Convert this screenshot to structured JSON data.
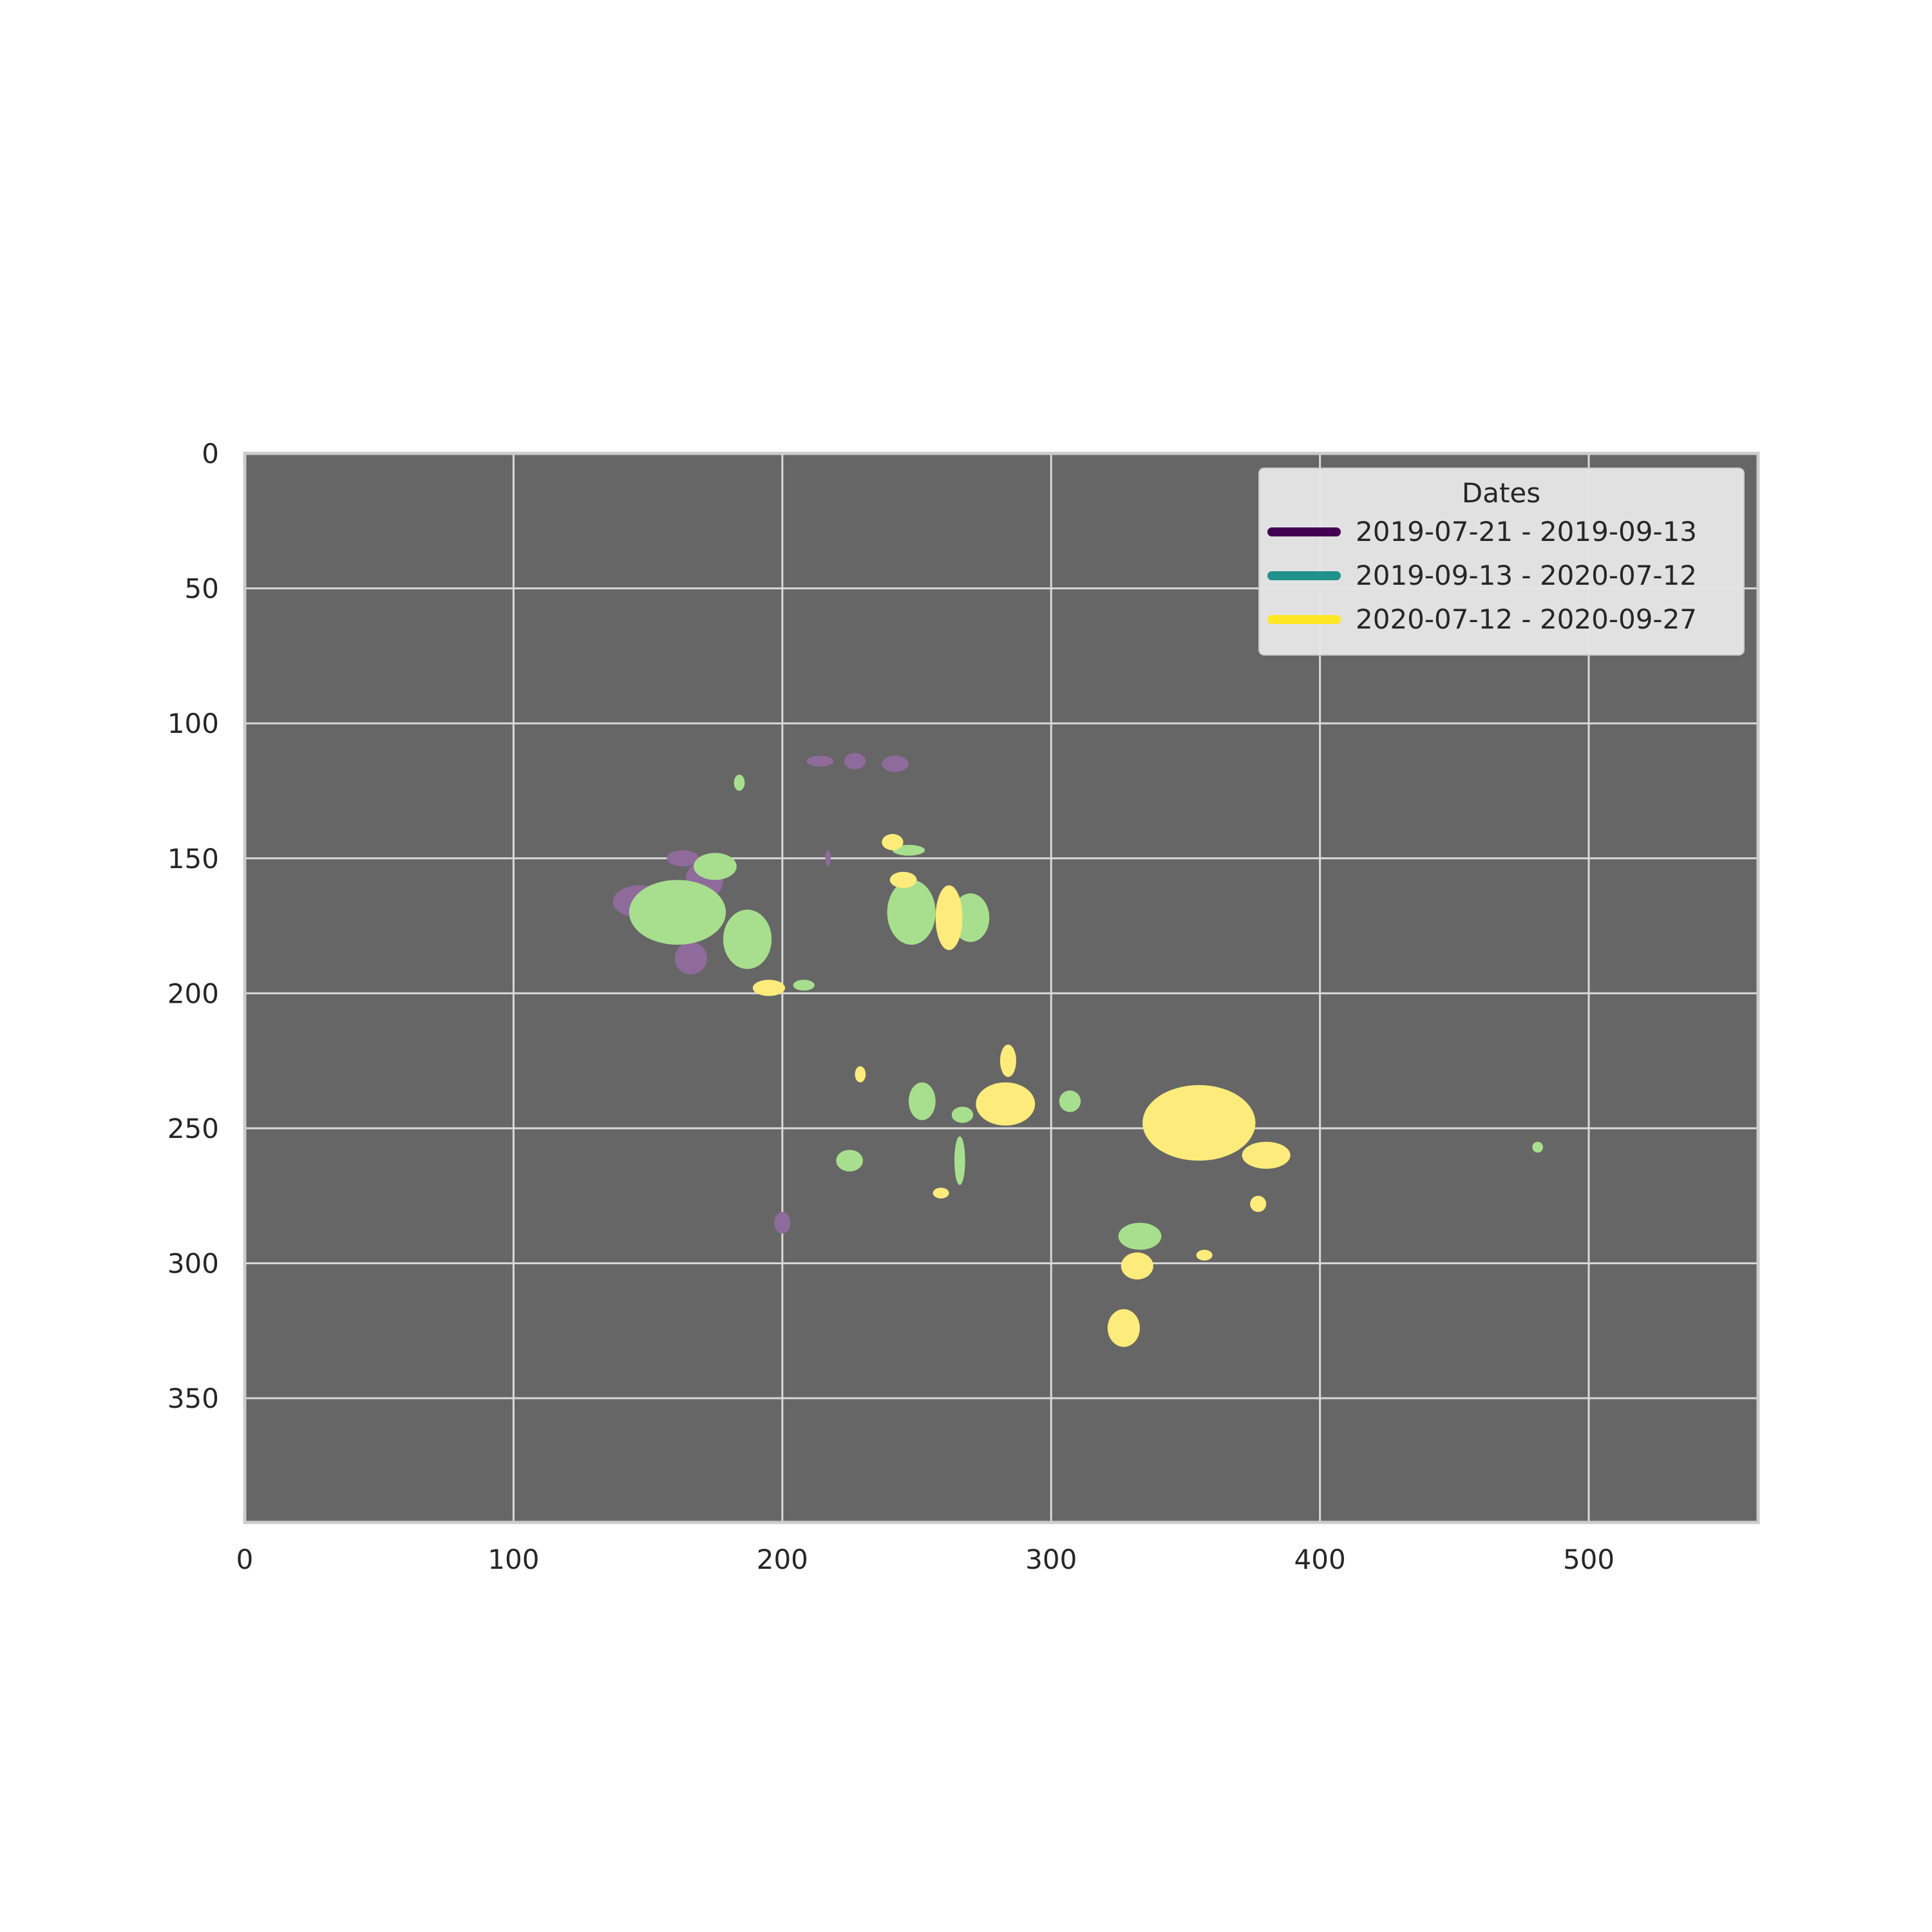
{
  "chart_data": {
    "type": "heatmap",
    "title": "",
    "xlabel": "",
    "ylabel": "",
    "xlim": [
      0,
      563
    ],
    "ylim": [
      396,
      0
    ],
    "y_axis_inverted": true,
    "grid": true,
    "background_color": "#666666",
    "grid_color": "#d9d9d9",
    "x_ticks": [
      0,
      100,
      200,
      300,
      400,
      500
    ],
    "y_ticks": [
      0,
      50,
      100,
      150,
      200,
      250,
      300,
      350
    ],
    "legend": {
      "title": "Dates",
      "placement": "top-right",
      "entries": [
        {
          "label": "2019-07-21 - 2019-09-13",
          "color": "#440154"
        },
        {
          "label": "2019-09-13 - 2020-07-12",
          "color": "#21918c"
        },
        {
          "label": "2020-07-12 - 2020-09-27",
          "color": "#fde725"
        }
      ]
    },
    "series": [
      {
        "color": "#8f6b9c",
        "regions": [
          {
            "x": 147,
            "y": 166,
            "rx": 10,
            "ry": 6
          },
          {
            "x": 163,
            "y": 150,
            "rx": 6,
            "ry": 3
          },
          {
            "x": 171,
            "y": 158,
            "rx": 7,
            "ry": 7
          },
          {
            "x": 166,
            "y": 187,
            "rx": 6,
            "ry": 6
          },
          {
            "x": 214,
            "y": 114,
            "rx": 5,
            "ry": 2
          },
          {
            "x": 227,
            "y": 114,
            "rx": 4,
            "ry": 3
          },
          {
            "x": 242,
            "y": 115,
            "rx": 5,
            "ry": 3
          },
          {
            "x": 217,
            "y": 150,
            "rx": 1,
            "ry": 3
          },
          {
            "x": 200,
            "y": 285,
            "rx": 3,
            "ry": 4
          }
        ]
      },
      {
        "color": "#a8df8e",
        "regions": [
          {
            "x": 161,
            "y": 170,
            "rx": 18,
            "ry": 12
          },
          {
            "x": 175,
            "y": 153,
            "rx": 8,
            "ry": 5
          },
          {
            "x": 187,
            "y": 180,
            "rx": 9,
            "ry": 11
          },
          {
            "x": 248,
            "y": 170,
            "rx": 9,
            "ry": 12
          },
          {
            "x": 270,
            "y": 172,
            "rx": 7,
            "ry": 9
          },
          {
            "x": 247,
            "y": 147,
            "rx": 6,
            "ry": 2
          },
          {
            "x": 267,
            "y": 245,
            "rx": 4,
            "ry": 3
          },
          {
            "x": 266,
            "y": 262,
            "rx": 2,
            "ry": 9
          },
          {
            "x": 252,
            "y": 240,
            "rx": 5,
            "ry": 7
          },
          {
            "x": 225,
            "y": 262,
            "rx": 5,
            "ry": 4
          },
          {
            "x": 333,
            "y": 290,
            "rx": 8,
            "ry": 5
          },
          {
            "x": 307,
            "y": 240,
            "rx": 4,
            "ry": 4
          },
          {
            "x": 481,
            "y": 257,
            "rx": 2,
            "ry": 2
          },
          {
            "x": 208,
            "y": 197,
            "rx": 4,
            "ry": 2
          },
          {
            "x": 184,
            "y": 122,
            "rx": 2,
            "ry": 3
          }
        ]
      },
      {
        "color": "#fdeb7b",
        "regions": [
          {
            "x": 262,
            "y": 172,
            "rx": 5,
            "ry": 12
          },
          {
            "x": 245,
            "y": 158,
            "rx": 5,
            "ry": 3
          },
          {
            "x": 283,
            "y": 241,
            "rx": 11,
            "ry": 8
          },
          {
            "x": 284,
            "y": 225,
            "rx": 3,
            "ry": 6
          },
          {
            "x": 355,
            "y": 248,
            "rx": 21,
            "ry": 14
          },
          {
            "x": 380,
            "y": 260,
            "rx": 9,
            "ry": 5
          },
          {
            "x": 377,
            "y": 278,
            "rx": 3,
            "ry": 3
          },
          {
            "x": 332,
            "y": 301,
            "rx": 6,
            "ry": 5
          },
          {
            "x": 327,
            "y": 324,
            "rx": 6,
            "ry": 7
          },
          {
            "x": 259,
            "y": 274,
            "rx": 3,
            "ry": 2
          },
          {
            "x": 229,
            "y": 230,
            "rx": 2,
            "ry": 3
          },
          {
            "x": 195,
            "y": 198,
            "rx": 6,
            "ry": 3
          },
          {
            "x": 241,
            "y": 144,
            "rx": 4,
            "ry": 3
          },
          {
            "x": 357,
            "y": 297,
            "rx": 3,
            "ry": 2
          }
        ]
      }
    ]
  }
}
